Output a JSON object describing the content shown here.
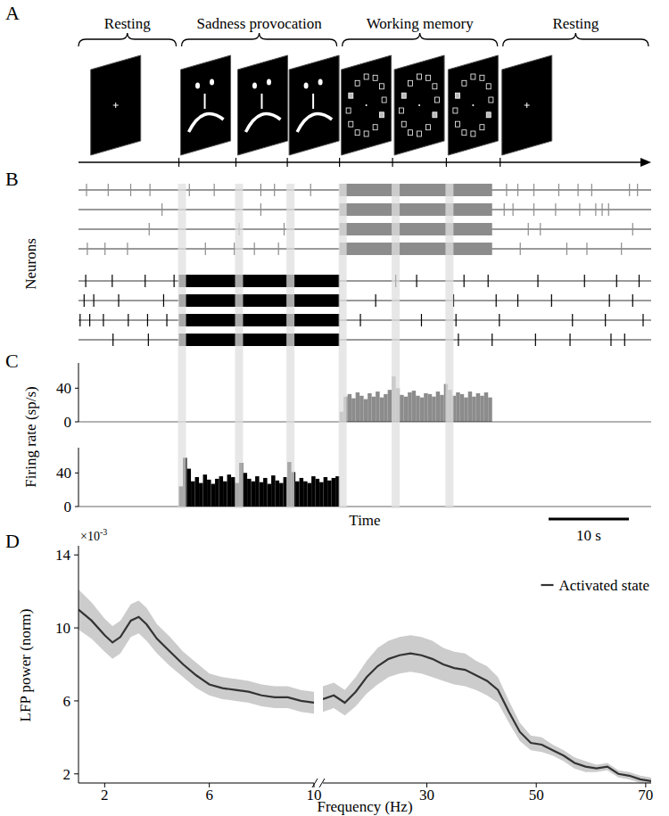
{
  "panel_a": {
    "title": "A",
    "xlim": [
      0,
      71.3
    ],
    "stages": [
      {
        "label": "Resting",
        "start": 0,
        "end": 12.5,
        "onsets": [
          1.3
        ]
      },
      {
        "label": "Sadness provocation",
        "start": 12.5,
        "end": 32.5,
        "onsets": [
          12.5,
          19.6,
          26.0
        ]
      },
      {
        "label": "Working memory",
        "start": 32.5,
        "end": 52.5,
        "onsets": [
          32.5,
          39.1,
          45.8
        ]
      },
      {
        "label": "Resting",
        "start": 52.5,
        "end": 71.3,
        "onsets": [
          52.5
        ]
      }
    ]
  },
  "chart_data": [
    {
      "type": "raster",
      "title": "B",
      "y_label": "Neurons",
      "xlim": [
        0,
        71.3
      ],
      "tick_labels": false,
      "events": [
        12.5,
        19.6,
        26.0,
        32.5,
        39.1,
        45.8
      ],
      "series": [
        {
          "color": "#8c8c8c",
          "bursts": [
            [
              32.5,
              51.5
            ]
          ],
          "spikes": [
            1.0,
            3.7,
            6.5,
            8.9,
            13.8,
            16.9,
            22.7,
            24.4,
            28.9,
            53.3,
            54.7,
            56.7,
            59.8,
            62.2,
            63.9,
            68.6,
            69.6
          ]
        },
        {
          "color": "#8c8c8c",
          "bursts": [
            [
              32.5,
              51.5
            ]
          ],
          "spikes": [
            10.4,
            22.7,
            53.0,
            54.1,
            56.7,
            59.4,
            62.4,
            64.4,
            65.2,
            66.0
          ]
        },
        {
          "color": "#8c8c8c",
          "bursts": [
            [
              32.5,
              51.5
            ]
          ],
          "spikes": [
            8.8,
            20.0,
            25.6,
            56.0,
            57.5,
            69.0
          ]
        },
        {
          "color": "#8c8c8c",
          "bursts": [
            [
              32.5,
              51.5
            ]
          ],
          "spikes": [
            1.1,
            3.3,
            6.1,
            15.8,
            19.4,
            21.9,
            24.9,
            55.0,
            60.8,
            63.3,
            67.6
          ]
        },
        {
          "color": "#000000",
          "bursts": [
            [
              12.5,
              32.5
            ]
          ],
          "spikes": [
            0.9,
            4.2,
            8.3,
            11.9,
            39.5,
            42.1,
            48.0,
            51.0,
            57.2,
            63.0,
            67.0,
            69.8
          ]
        },
        {
          "color": "#000000",
          "bursts": [
            [
              12.5,
              32.5
            ]
          ],
          "spikes": [
            0.7,
            1.9,
            5.0,
            10.6,
            37.0,
            46.7,
            52.0,
            54.7,
            58.9,
            66.1,
            69.0
          ]
        },
        {
          "color": "#000000",
          "bursts": [
            [
              12.5,
              32.5
            ]
          ],
          "spikes": [
            0.2,
            1.4,
            3.1,
            6.2,
            8.6,
            11.0,
            35.1,
            42.7,
            47.0,
            52.4,
            61.5,
            65.6,
            70.3
          ]
        },
        {
          "color": "#000000",
          "bursts": [
            [
              12.5,
              32.5
            ]
          ],
          "spikes": [
            4.3,
            8.7,
            47.3,
            51.5,
            56.9,
            61.2,
            66.3,
            68.0
          ]
        }
      ]
    },
    {
      "type": "histogram",
      "title": "C",
      "y_label": "Firing rate (sp/s)",
      "xlim": [
        0,
        71.3
      ],
      "ylim": [
        0,
        70
      ],
      "yticks": [
        0,
        40
      ],
      "tick_labels": "y",
      "color": "#8c8c8c",
      "bins": [
        32.5,
        33,
        33.5,
        34,
        34.5,
        35,
        35.5,
        36,
        36.5,
        37,
        37.5,
        38,
        38.5,
        39,
        39.5,
        40,
        40.5,
        41,
        41.5,
        42,
        42.5,
        43,
        43.5,
        44,
        44.5,
        45,
        45.5,
        46,
        46.5,
        47,
        47.5,
        48,
        48.5,
        49,
        49.5,
        50,
        50.5,
        51,
        51.5
      ],
      "values": [
        12,
        30,
        33,
        28,
        35,
        31,
        27,
        34,
        30,
        36,
        29,
        33,
        38,
        54,
        40,
        32,
        30,
        35,
        37,
        31,
        29,
        34,
        33,
        30,
        36,
        32,
        45,
        38,
        31,
        35,
        33,
        29,
        36,
        30,
        34,
        31,
        35,
        29
      ]
    },
    {
      "type": "histogram",
      "x_label": "Time",
      "xlim": [
        0,
        71.3
      ],
      "ylim": [
        0,
        70
      ],
      "yticks": [
        0,
        40
      ],
      "tick_labels": "y",
      "color": "#000000",
      "bins": [
        12.5,
        13,
        13.5,
        14,
        14.5,
        15,
        15.5,
        16,
        16.5,
        17,
        17.5,
        18,
        18.5,
        19,
        19.5,
        20,
        20.5,
        21,
        21.5,
        22,
        22.5,
        23,
        23.5,
        24,
        24.5,
        25,
        25.5,
        26,
        26.5,
        27,
        27.5,
        28,
        28.5,
        29,
        29.5,
        30,
        30.5,
        31,
        31.5,
        32,
        32.5
      ],
      "values": [
        24,
        58,
        45,
        30,
        35,
        28,
        38,
        32,
        27,
        33,
        36,
        30,
        38,
        35,
        28,
        52,
        40,
        33,
        30,
        36,
        29,
        34,
        27,
        37,
        31,
        28,
        35,
        53,
        41,
        30,
        34,
        30,
        28,
        36,
        33,
        29,
        35,
        31,
        34,
        36
      ],
      "scale_bar": {
        "value": 10,
        "label": "10 s"
      }
    },
    {
      "type": "line",
      "title": "D",
      "y_label": "LFP power (norm)",
      "y_scale": {
        "base": "×10",
        "exponent": "-3"
      },
      "xlim": [
        1,
        10
      ],
      "xticks": [
        2,
        6,
        10
      ],
      "ylim": [
        1.5,
        14.5
      ],
      "yticks": [
        2,
        6,
        10,
        14
      ],
      "tick_labels": true,
      "series": [
        {
          "color": "#333333",
          "x": [
            1,
            1.5,
            2,
            2.3,
            2.6,
            3,
            3.3,
            3.6,
            4,
            4.5,
            5,
            5.5,
            6,
            6.5,
            7,
            7.5,
            8,
            8.5,
            9,
            9.5,
            10
          ],
          "values": [
            11.0,
            10.4,
            9.6,
            9.2,
            9.5,
            10.4,
            10.6,
            10.2,
            9.4,
            8.7,
            8.0,
            7.4,
            6.9,
            6.7,
            6.6,
            6.5,
            6.3,
            6.2,
            6.2,
            6.0,
            5.9
          ],
          "error": [
            1.1,
            1.0,
            0.9,
            0.9,
            0.9,
            0.9,
            0.9,
            0.9,
            0.8,
            0.8,
            0.7,
            0.7,
            0.6,
            0.6,
            0.6,
            0.6,
            0.6,
            0.6,
            0.6,
            0.6,
            0.6
          ]
        }
      ]
    },
    {
      "type": "line",
      "x_label": "Frequency (Hz)",
      "xlim": [
        11,
        71
      ],
      "xticks": [
        30,
        50,
        70
      ],
      "ylim": [
        1.5,
        14.5
      ],
      "tick_labels": "x",
      "legend": "upper right",
      "series": [
        {
          "name": "Activated state",
          "color": "#333333",
          "x": [
            11,
            13,
            15,
            17,
            19,
            21,
            23,
            25,
            27,
            29,
            31,
            33,
            35,
            37,
            39,
            41,
            43,
            45,
            47,
            49,
            51,
            53,
            55,
            57,
            59,
            61,
            63,
            65,
            67,
            69,
            71
          ],
          "values": [
            6.1,
            6.3,
            5.9,
            6.5,
            7.3,
            7.9,
            8.3,
            8.5,
            8.6,
            8.5,
            8.3,
            8.0,
            7.8,
            7.7,
            7.4,
            7.1,
            6.6,
            5.4,
            4.3,
            3.7,
            3.6,
            3.3,
            3.0,
            2.6,
            2.4,
            2.3,
            2.4,
            2.0,
            1.9,
            1.7,
            1.6
          ],
          "error": [
            0.7,
            0.7,
            0.7,
            0.8,
            0.9,
            1.0,
            1.0,
            1.0,
            1.0,
            1.0,
            1.0,
            0.9,
            0.9,
            0.9,
            0.8,
            0.8,
            0.7,
            0.6,
            0.5,
            0.4,
            0.4,
            0.3,
            0.3,
            0.3,
            0.3,
            0.2,
            0.2,
            0.2,
            0.2,
            0.2,
            0.2
          ]
        }
      ]
    }
  ]
}
